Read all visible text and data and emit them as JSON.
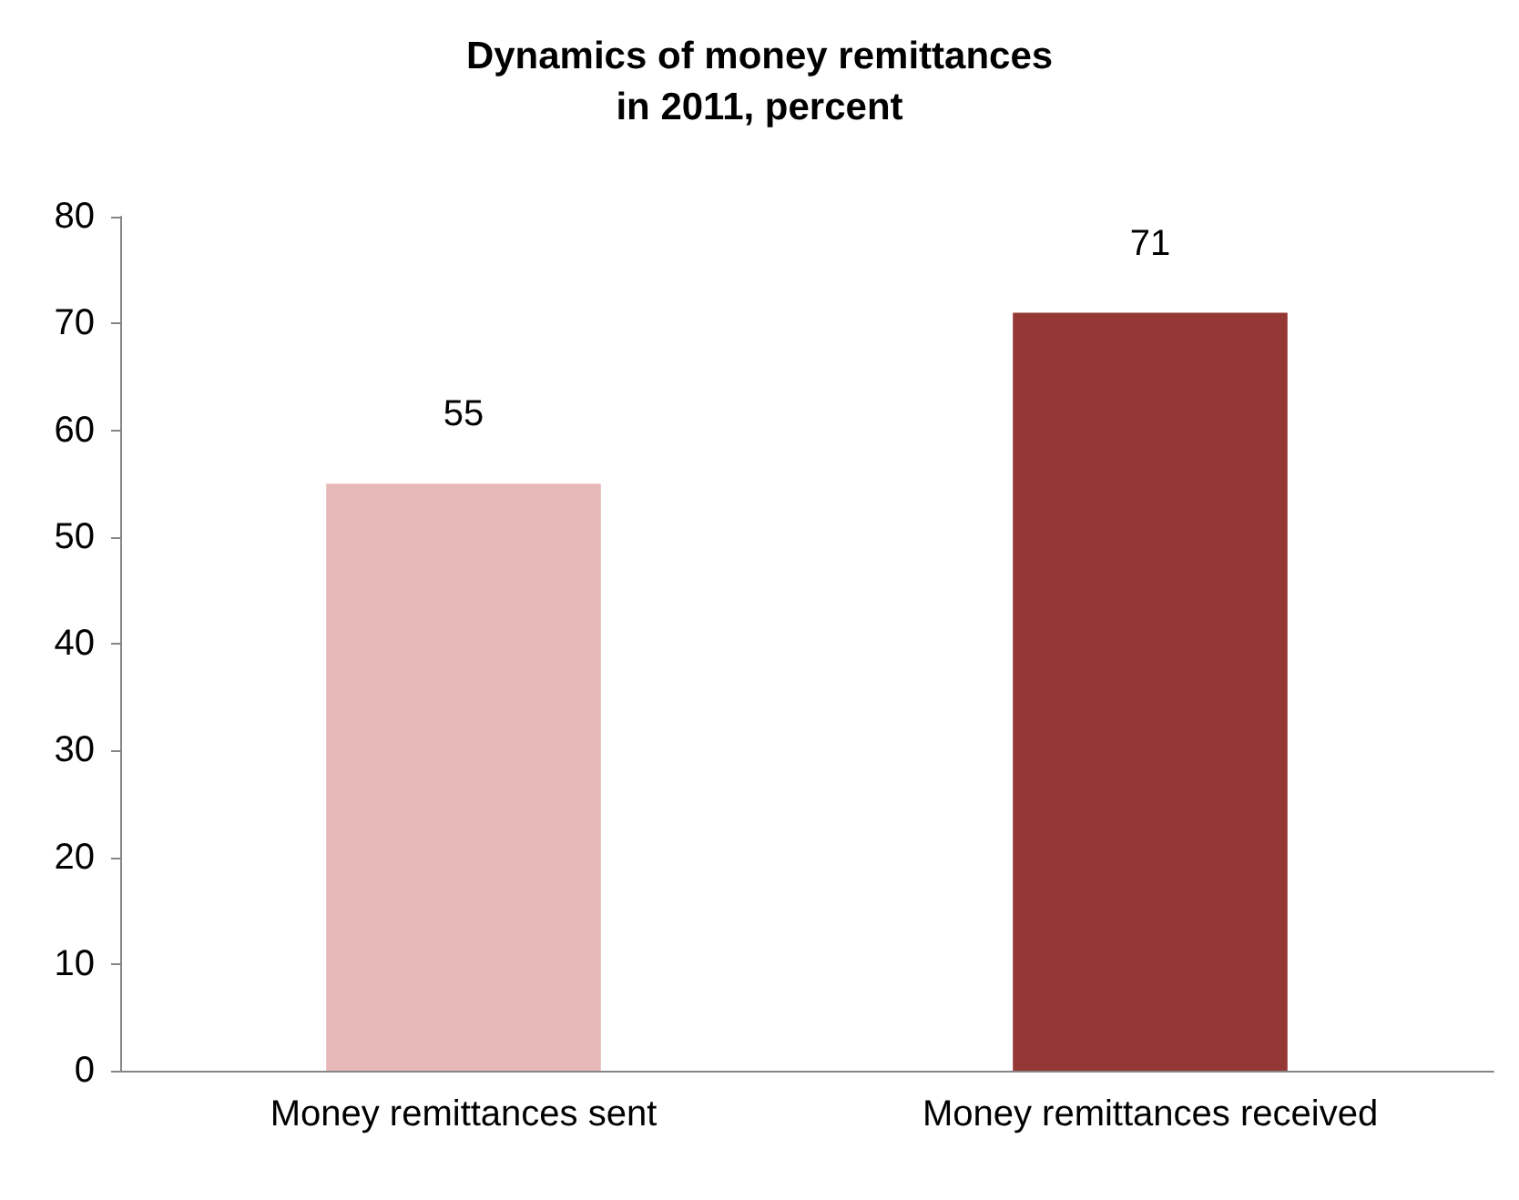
{
  "chart_data": {
    "type": "bar",
    "title": "Dynamics of money remittances\nin 2011, percent",
    "categories": [
      "Money remittances sent",
      "Money remittances received"
    ],
    "values": [
      55,
      71
    ],
    "colors": [
      "#e6b8b7",
      "#953735"
    ],
    "ylim": [
      0,
      80
    ],
    "yticks": [
      0,
      10,
      20,
      30,
      40,
      50,
      60,
      70,
      80
    ],
    "grid": false,
    "data_labels": true
  }
}
